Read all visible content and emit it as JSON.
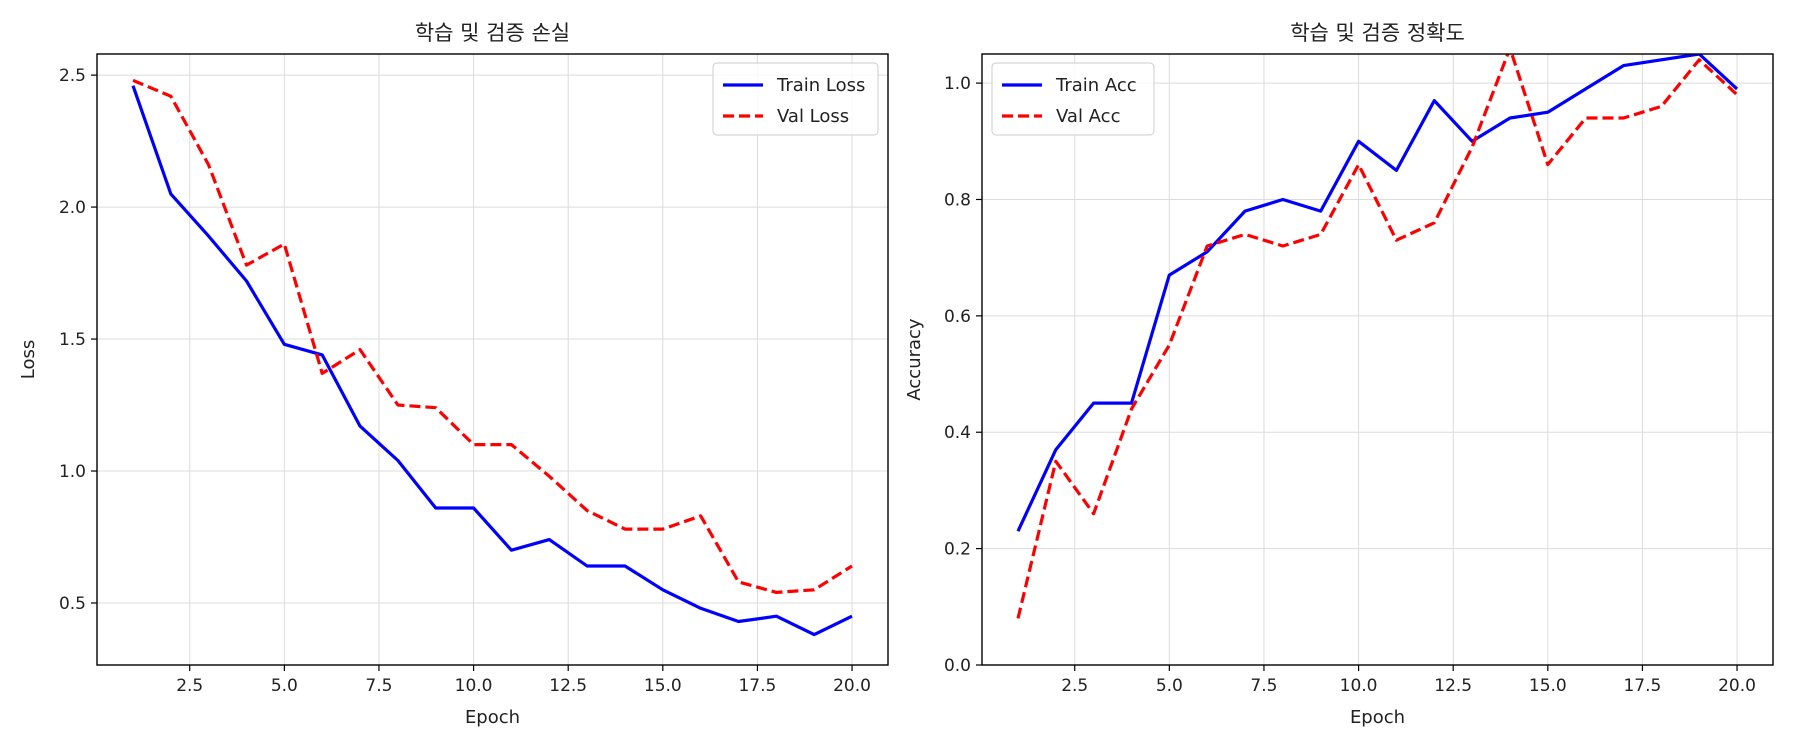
{
  "chart_data": [
    {
      "type": "line",
      "title": "학습 및 검증 손실",
      "xlabel": "Epoch",
      "ylabel": "Loss",
      "xlim": [
        0.05,
        20.95
      ],
      "ylim": [
        0.265,
        2.58
      ],
      "xticks": [
        2.5,
        5.0,
        7.5,
        10.0,
        12.5,
        15.0,
        17.5,
        20.0
      ],
      "xtick_labels": [
        "2.5",
        "5.0",
        "7.5",
        "10.0",
        "12.5",
        "15.0",
        "17.5",
        "20.0"
      ],
      "yticks": [
        0.5,
        1.0,
        1.5,
        2.0,
        2.5
      ],
      "ytick_labels": [
        "0.5",
        "1.0",
        "1.5",
        "2.0",
        "2.5"
      ],
      "grid": true,
      "legend_position": "top-right",
      "x": [
        1,
        2,
        3,
        4,
        5,
        6,
        7,
        8,
        9,
        10,
        11,
        12,
        13,
        14,
        15,
        16,
        17,
        18,
        19,
        20
      ],
      "series": [
        {
          "name": "Train Loss",
          "color": "#0000ff",
          "style": "solid",
          "values": [
            2.46,
            2.05,
            1.89,
            1.72,
            1.48,
            1.44,
            1.17,
            1.04,
            0.86,
            0.86,
            0.7,
            0.74,
            0.64,
            0.64,
            0.55,
            0.48,
            0.43,
            0.45,
            0.38,
            0.45
          ]
        },
        {
          "name": "Val Loss",
          "color": "#ff0000",
          "style": "dashed",
          "values": [
            2.48,
            2.42,
            2.16,
            1.78,
            1.86,
            1.37,
            1.46,
            1.25,
            1.24,
            1.1,
            1.1,
            0.98,
            0.85,
            0.78,
            0.78,
            0.83,
            0.58,
            0.54,
            0.55,
            0.64
          ]
        }
      ]
    },
    {
      "type": "line",
      "title": "학습 및 검증 정확도",
      "xlabel": "Epoch",
      "ylabel": "Accuracy",
      "xlim": [
        0.05,
        20.95
      ],
      "ylim": [
        0.0,
        1.05
      ],
      "xticks": [
        2.5,
        5.0,
        7.5,
        10.0,
        12.5,
        15.0,
        17.5,
        20.0
      ],
      "xtick_labels": [
        "2.5",
        "5.0",
        "7.5",
        "10.0",
        "12.5",
        "15.0",
        "17.5",
        "20.0"
      ],
      "yticks": [
        0.0,
        0.2,
        0.4,
        0.6,
        0.8,
        1.0
      ],
      "ytick_labels": [
        "0.0",
        "0.2",
        "0.4",
        "0.6",
        "0.8",
        "1.0"
      ],
      "grid": true,
      "legend_position": "top-left",
      "x": [
        1,
        2,
        3,
        4,
        5,
        6,
        7,
        8,
        9,
        10,
        11,
        12,
        13,
        14,
        15,
        16,
        17,
        18,
        19,
        20
      ],
      "series": [
        {
          "name": "Train Acc",
          "color": "#0000ff",
          "style": "solid",
          "values": [
            0.23,
            0.37,
            0.45,
            0.45,
            0.67,
            0.71,
            0.78,
            0.8,
            0.78,
            0.9,
            0.85,
            0.97,
            0.9,
            0.94,
            0.95,
            0.99,
            1.03,
            1.04,
            1.05,
            0.99
          ]
        },
        {
          "name": "Val Acc",
          "color": "#ff0000",
          "style": "dashed",
          "values": [
            0.08,
            0.35,
            0.26,
            0.44,
            0.55,
            0.72,
            0.74,
            0.72,
            0.74,
            0.86,
            0.73,
            0.76,
            0.89,
            1.06,
            0.86,
            0.94,
            0.94,
            0.96,
            1.04,
            0.98
          ]
        }
      ]
    }
  ]
}
